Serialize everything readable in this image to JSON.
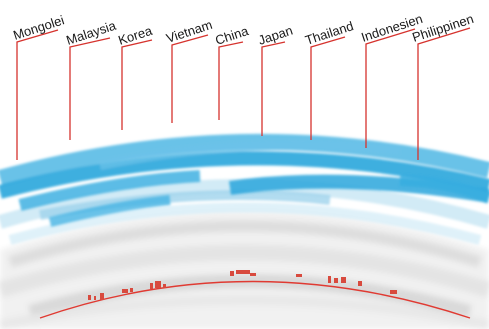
{
  "diagram": {
    "countries": [
      {
        "name": "Mongolei"
      },
      {
        "name": "Malaysia"
      },
      {
        "name": "Korea"
      },
      {
        "name": "Vietnam"
      },
      {
        "name": "China"
      },
      {
        "name": "Japan"
      },
      {
        "name": "Thailand"
      },
      {
        "name": "Indonesien"
      },
      {
        "name": "Philippinen"
      }
    ],
    "colors": {
      "leader_line": "#d6332e",
      "blue_band": "#2aa6dc",
      "light_band": "#a9d9ef",
      "grey_band": "#cfcfcf",
      "horizon_line": "#e03a32"
    }
  }
}
